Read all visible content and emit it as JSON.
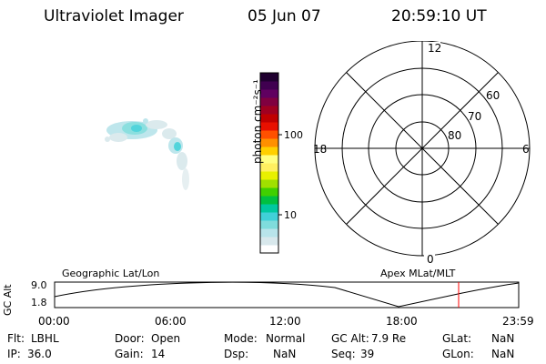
{
  "header": {
    "instrument": "Ultraviolet Imager",
    "date": "05 Jun 07",
    "time": "20:59:10 UT"
  },
  "colorbar": {
    "label": "photon cm⁻²s⁻¹",
    "ticks": [
      "100",
      "10"
    ],
    "colors": [
      "#ffffff",
      "#d8e8ec",
      "#b8e4ea",
      "#7fdcdc",
      "#40d0d8",
      "#00c8a0",
      "#00c040",
      "#40d000",
      "#a0e000",
      "#e8f000",
      "#fff060",
      "#ffff80",
      "#ffd000",
      "#ff9000",
      "#ff5000",
      "#e81000",
      "#c00000",
      "#a00020",
      "#800040",
      "#600060",
      "#400050",
      "#200030"
    ]
  },
  "polar": {
    "mlt_labels": {
      "top": "12",
      "bottom": "0",
      "left": "18",
      "right": "6"
    },
    "lat_labels": [
      "60",
      "70",
      "80"
    ]
  },
  "altitude_plot": {
    "ylabel": "GC Alt",
    "ymax_label": "9.0",
    "ymin_label": "1.8",
    "left_title": "Geographic Lat/Lon",
    "right_title": "Apex MLat/MLT",
    "time_ticks": [
      "00:00",
      "06:00",
      "12:00",
      "18:00",
      "23:59"
    ],
    "marker_color": "#ff0000",
    "marker_time": "20:59"
  },
  "status": {
    "col1": [
      {
        "k": "Flt:",
        "v": "LBHL"
      },
      {
        "k": "IP:",
        "v": "36.0"
      }
    ],
    "col2": [
      {
        "k": "Door:",
        "v": "Open"
      },
      {
        "k": "Gain:",
        "v": "14"
      }
    ],
    "col3": [
      {
        "k": "Mode:",
        "v": "Normal"
      },
      {
        "k": "Dsp:",
        "v": "NaN"
      }
    ],
    "col4": [
      {
        "k": "GC Alt:",
        "v": "7.9 Re"
      },
      {
        "k": "Seq:",
        "v": "39"
      }
    ],
    "col5": [
      {
        "k": "GLat:",
        "v": "NaN"
      },
      {
        "k": "GLon:",
        "v": "NaN"
      }
    ]
  }
}
